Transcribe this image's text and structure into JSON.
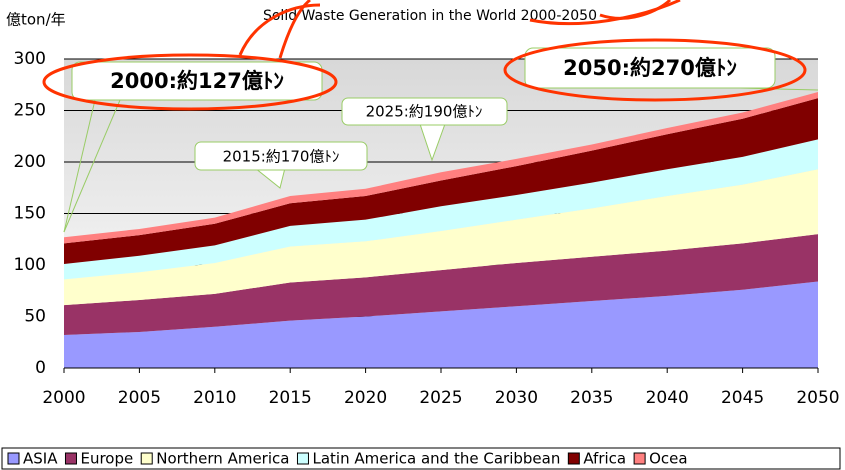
{
  "chart_data": {
    "type": "stacked_area",
    "title": "Solid Waste Generation in the World 2000-2050",
    "y_label": "億ton/年",
    "x": [
      2000,
      2005,
      2010,
      2015,
      2020,
      2025,
      2030,
      2035,
      2040,
      2045,
      2050
    ],
    "series": [
      {
        "name": "ASIA",
        "color": "#9999ff",
        "values": [
          32,
          35,
          40,
          46,
          50,
          55,
          60,
          65,
          70,
          76,
          84
        ]
      },
      {
        "name": "Europe",
        "color": "#993366",
        "values": [
          29,
          31,
          32,
          37,
          38,
          40,
          42,
          43,
          44,
          45,
          46
        ]
      },
      {
        "name": "Northern America",
        "color": "#ffffcc",
        "values": [
          25,
          27,
          30,
          35,
          35,
          38,
          42,
          47,
          53,
          57,
          63
        ]
      },
      {
        "name": "Latin America and the Caribbean",
        "color": "#ccffff",
        "values": [
          15,
          16,
          17,
          20,
          21,
          24,
          24,
          25,
          26,
          27,
          29
        ]
      },
      {
        "name": "Africa",
        "color": "#800000",
        "values": [
          20,
          20,
          21,
          22,
          23,
          25,
          28,
          31,
          34,
          37,
          40
        ]
      },
      {
        "name": "Ocea",
        "color": "#ff8080",
        "values": [
          6,
          6,
          6,
          7,
          7,
          8,
          7,
          6,
          6,
          6,
          6
        ]
      }
    ],
    "xlim": [
      2000,
      2050
    ],
    "xticks": [
      2000,
      2005,
      2010,
      2015,
      2020,
      2025,
      2030,
      2035,
      2040,
      2045,
      2050
    ],
    "ylim": [
      0,
      300
    ],
    "yticks": [
      0,
      50,
      100,
      150,
      200,
      250,
      300
    ],
    "grid": true,
    "annotations": [
      "2000:約127億ﾄﾝ",
      "2050:約270億ﾄﾝ",
      "2025:約190億ﾄﾝ",
      "2015:約170億ﾄﾝ"
    ]
  }
}
